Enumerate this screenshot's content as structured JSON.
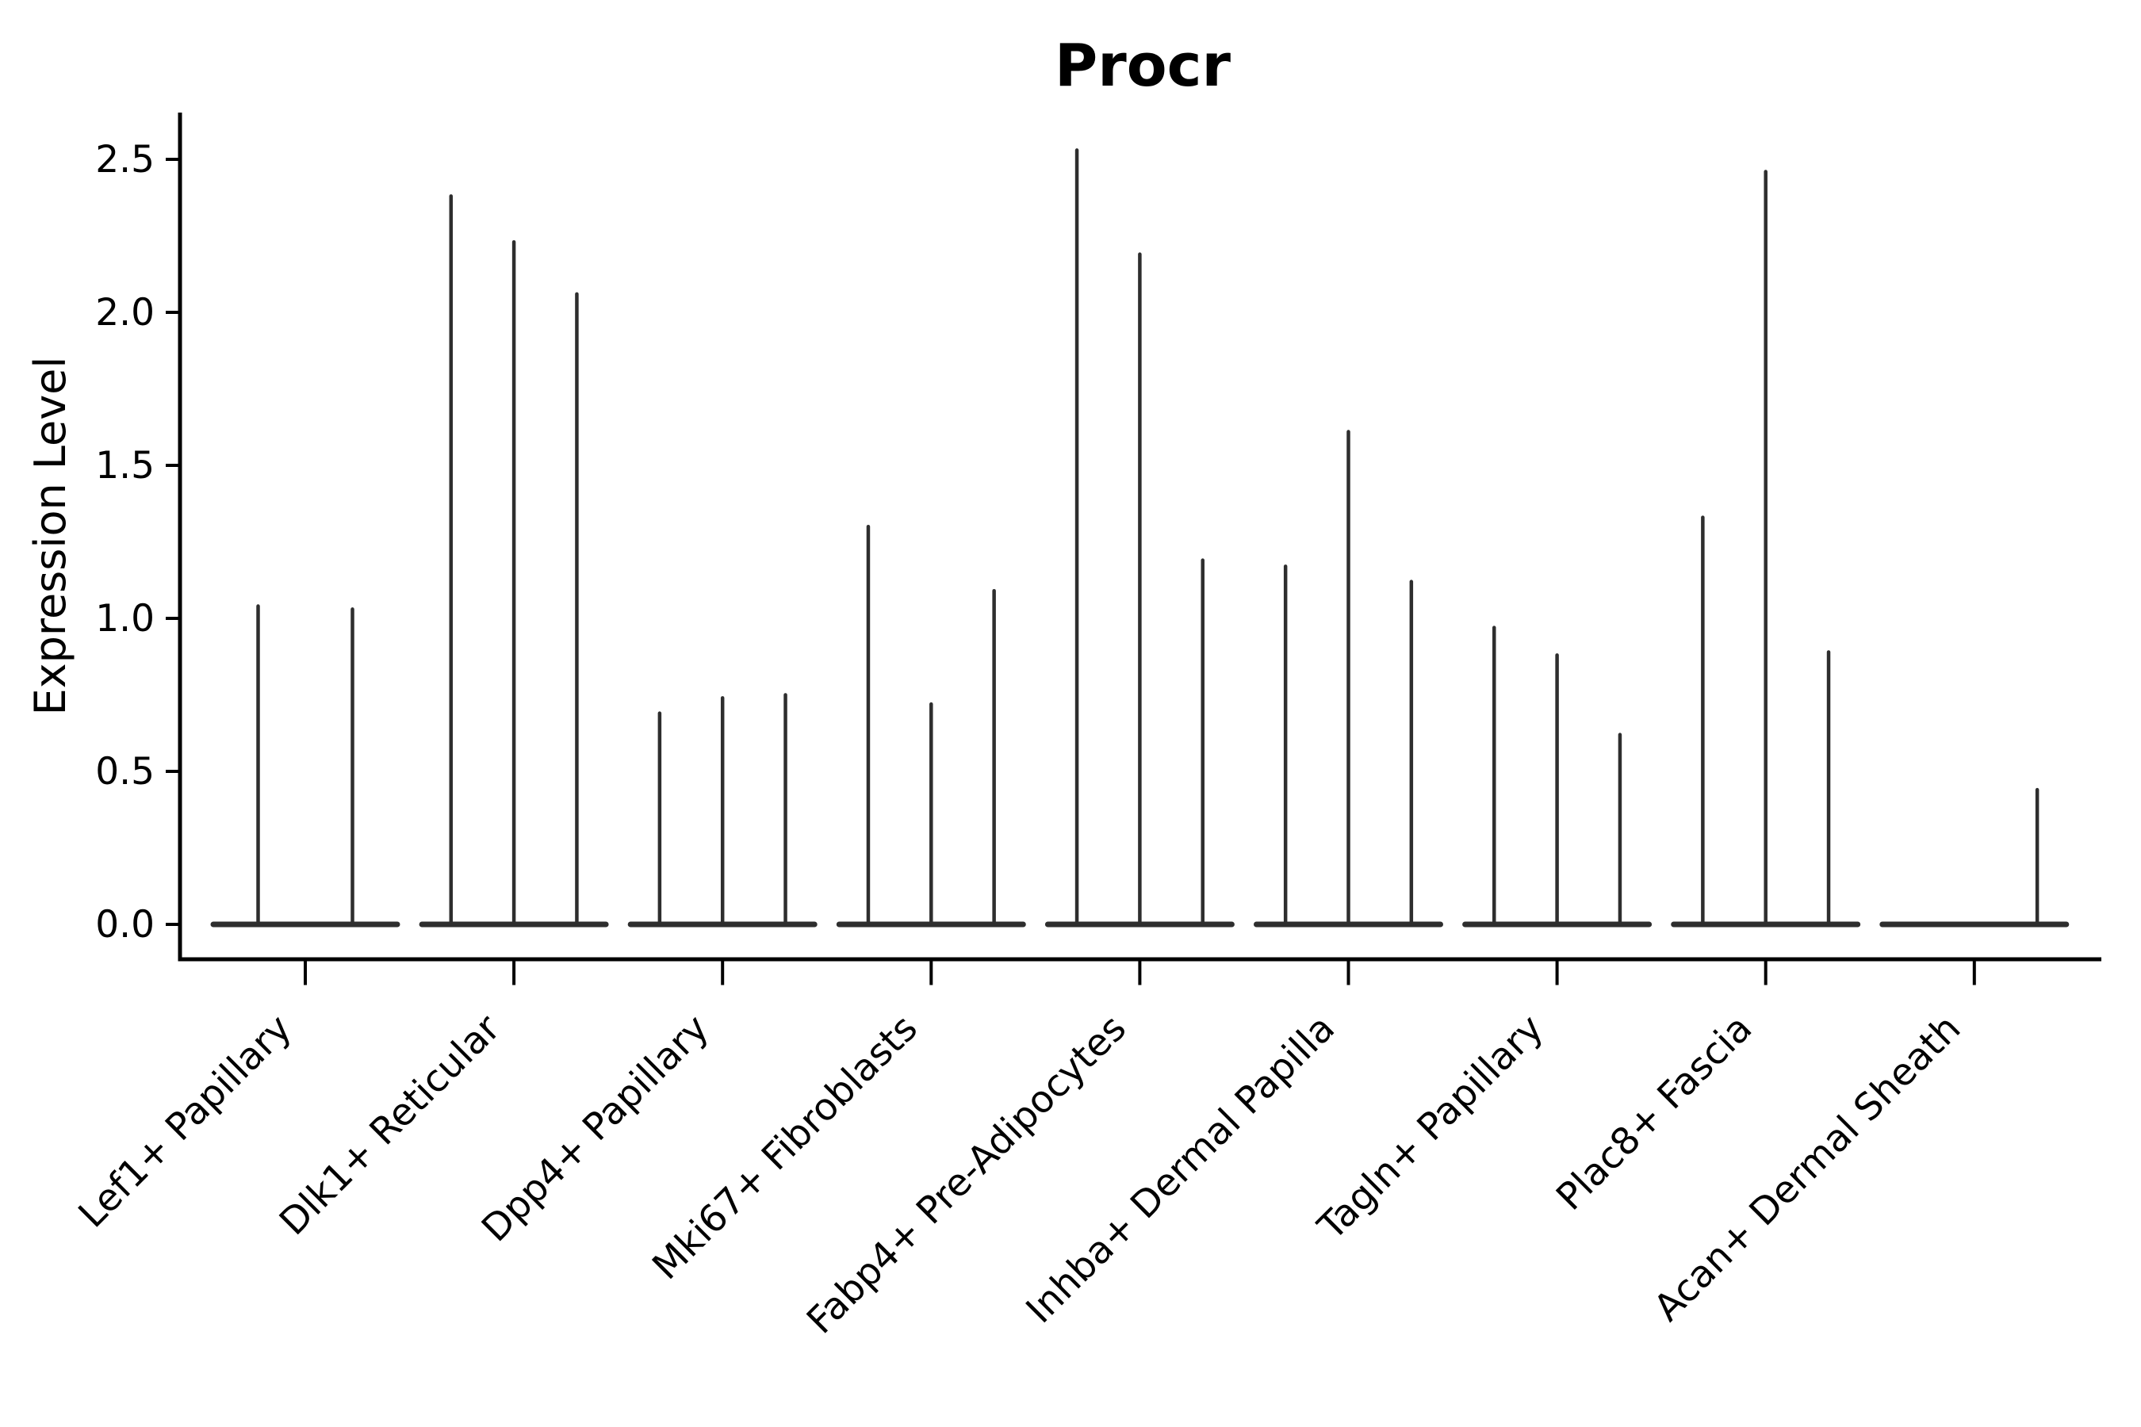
{
  "figure": {
    "background": "#ffffff"
  },
  "chart_data": {
    "type": "violin",
    "title": "Procr",
    "ylabel": "Expression Level",
    "xlabel": "",
    "yticks": [
      "0.0",
      "0.5",
      "1.0",
      "1.5",
      "2.0",
      "2.5"
    ],
    "ylim": [
      -0.11,
      2.65
    ],
    "grid": false,
    "legend": "none",
    "line_color": "#2e2e2e",
    "axis_color": "#000000",
    "categories": [
      "Lef1+ Papillary",
      "Dlk1+ Reticular",
      "Dpp4+ Papillary",
      "Mki67+ Fibroblasts",
      "Fabp4+ Pre-Adipocytes",
      "Inhba+ Dermal Papilla",
      "Tagln+ Papillary",
      "Plac8+ Fascia",
      "Acan+ Dermal Sheath"
    ],
    "groups": [
      {
        "label": "Lef1+ Papillary",
        "violin_max_values": [
          1.04,
          1.03
        ]
      },
      {
        "label": "Dlk1+ Reticular",
        "violin_max_values": [
          2.38,
          2.23,
          2.06
        ]
      },
      {
        "label": "Dpp4+ Papillary",
        "violin_max_values": [
          0.69,
          0.74,
          0.75
        ]
      },
      {
        "label": "Mki67+ Fibroblasts",
        "violin_max_values": [
          1.3,
          0.72,
          1.09
        ]
      },
      {
        "label": "Fabp4+ Pre-Adipocytes",
        "violin_max_values": [
          2.53,
          2.19,
          1.19
        ]
      },
      {
        "label": "Inhba+ Dermal Papilla",
        "violin_max_values": [
          1.17,
          1.61,
          1.12
        ]
      },
      {
        "label": "Tagln+ Papillary",
        "violin_max_values": [
          0.97,
          0.88,
          0.62
        ]
      },
      {
        "label": "Plac8+ Fascia",
        "violin_max_values": [
          1.33,
          2.46,
          0.89
        ]
      },
      {
        "label": "Acan+ Dermal Sheath",
        "violin_max_values": [
          0,
          0,
          0.44
        ]
      }
    ]
  }
}
